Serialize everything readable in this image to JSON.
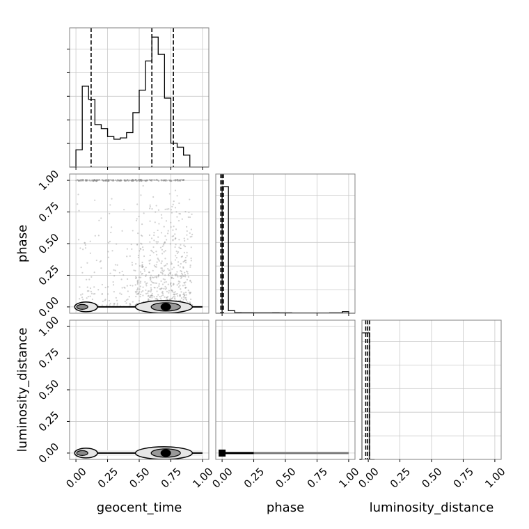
{
  "chart_data": {
    "type": "corner",
    "parameters": [
      "geocent_time",
      "phase",
      "luminosity_distance"
    ],
    "ticks": [
      "0.00",
      "0.25",
      "0.50",
      "0.75",
      "1.00"
    ],
    "tick_values": [
      0,
      0.25,
      0.5,
      0.75,
      1.0
    ],
    "axis_range": [
      -0.05,
      1.05
    ],
    "grid": true,
    "marginals": [
      {
        "parameter": "geocent_time",
        "bin_edges": [
          -0.05,
          0.0,
          0.05,
          0.1,
          0.15,
          0.2,
          0.25,
          0.3,
          0.35,
          0.4,
          0.45,
          0.5,
          0.55,
          0.6,
          0.65,
          0.7,
          0.75,
          0.8,
          0.85,
          0.9,
          0.95,
          1.0,
          1.05
        ],
        "counts": [
          0.0,
          0.13,
          0.61,
          0.51,
          0.32,
          0.29,
          0.23,
          0.21,
          0.22,
          0.26,
          0.41,
          0.58,
          0.8,
          0.98,
          0.85,
          0.52,
          0.18,
          0.15,
          0.09,
          0.0,
          0.0,
          0.0
        ],
        "quantiles": [
          0.12,
          0.6,
          0.77
        ],
        "ylim": [
          0,
          1.05
        ]
      },
      {
        "parameter": "phase",
        "bin_edges": [
          -0.05,
          0.0,
          0.05,
          0.1,
          0.15,
          0.2,
          0.25,
          0.3,
          0.35,
          0.4,
          0.45,
          0.5,
          0.55,
          0.6,
          0.65,
          0.7,
          0.75,
          0.8,
          0.85,
          0.9,
          0.95,
          1.0,
          1.05
        ],
        "counts": [
          0.0,
          1.0,
          0.02,
          0.005,
          0.004,
          0.004,
          0.003,
          0.003,
          0.003,
          0.004,
          0.003,
          0.003,
          0.002,
          0.002,
          0.002,
          0.002,
          0.002,
          0.002,
          0.003,
          0.003,
          0.012,
          0.0
        ],
        "quantiles": [
          -0.01,
          0.0,
          0.01
        ],
        "ylim": [
          0,
          1.1
        ]
      },
      {
        "parameter": "luminosity_distance",
        "bin_edges": [
          -0.07,
          -0.05,
          -0.03,
          -0.01,
          0.01,
          0.03,
          0.05
        ],
        "counts": [
          0.0,
          1.0,
          1.0,
          1.0,
          0.0,
          0.0
        ],
        "quantiles": [
          -0.02,
          -0.005,
          0.01
        ],
        "ylim": [
          0,
          1.1
        ]
      }
    ],
    "joints": [
      {
        "x": "geocent_time",
        "y": "phase",
        "scatter_band_y": 1.0,
        "contours_center_y": 0.0,
        "contour_regions": [
          [
            0.0,
            0.12
          ],
          [
            0.47,
            0.92
          ]
        ]
      },
      {
        "x": "geocent_time",
        "y": "luminosity_distance",
        "contours_center_y": 0.0,
        "contour_regions": [
          [
            0.0,
            0.12
          ],
          [
            0.47,
            0.92
          ]
        ]
      },
      {
        "x": "phase",
        "y": "luminosity_distance",
        "line_y": 0.0,
        "x_extent": [
          0.0,
          1.0
        ]
      }
    ]
  }
}
